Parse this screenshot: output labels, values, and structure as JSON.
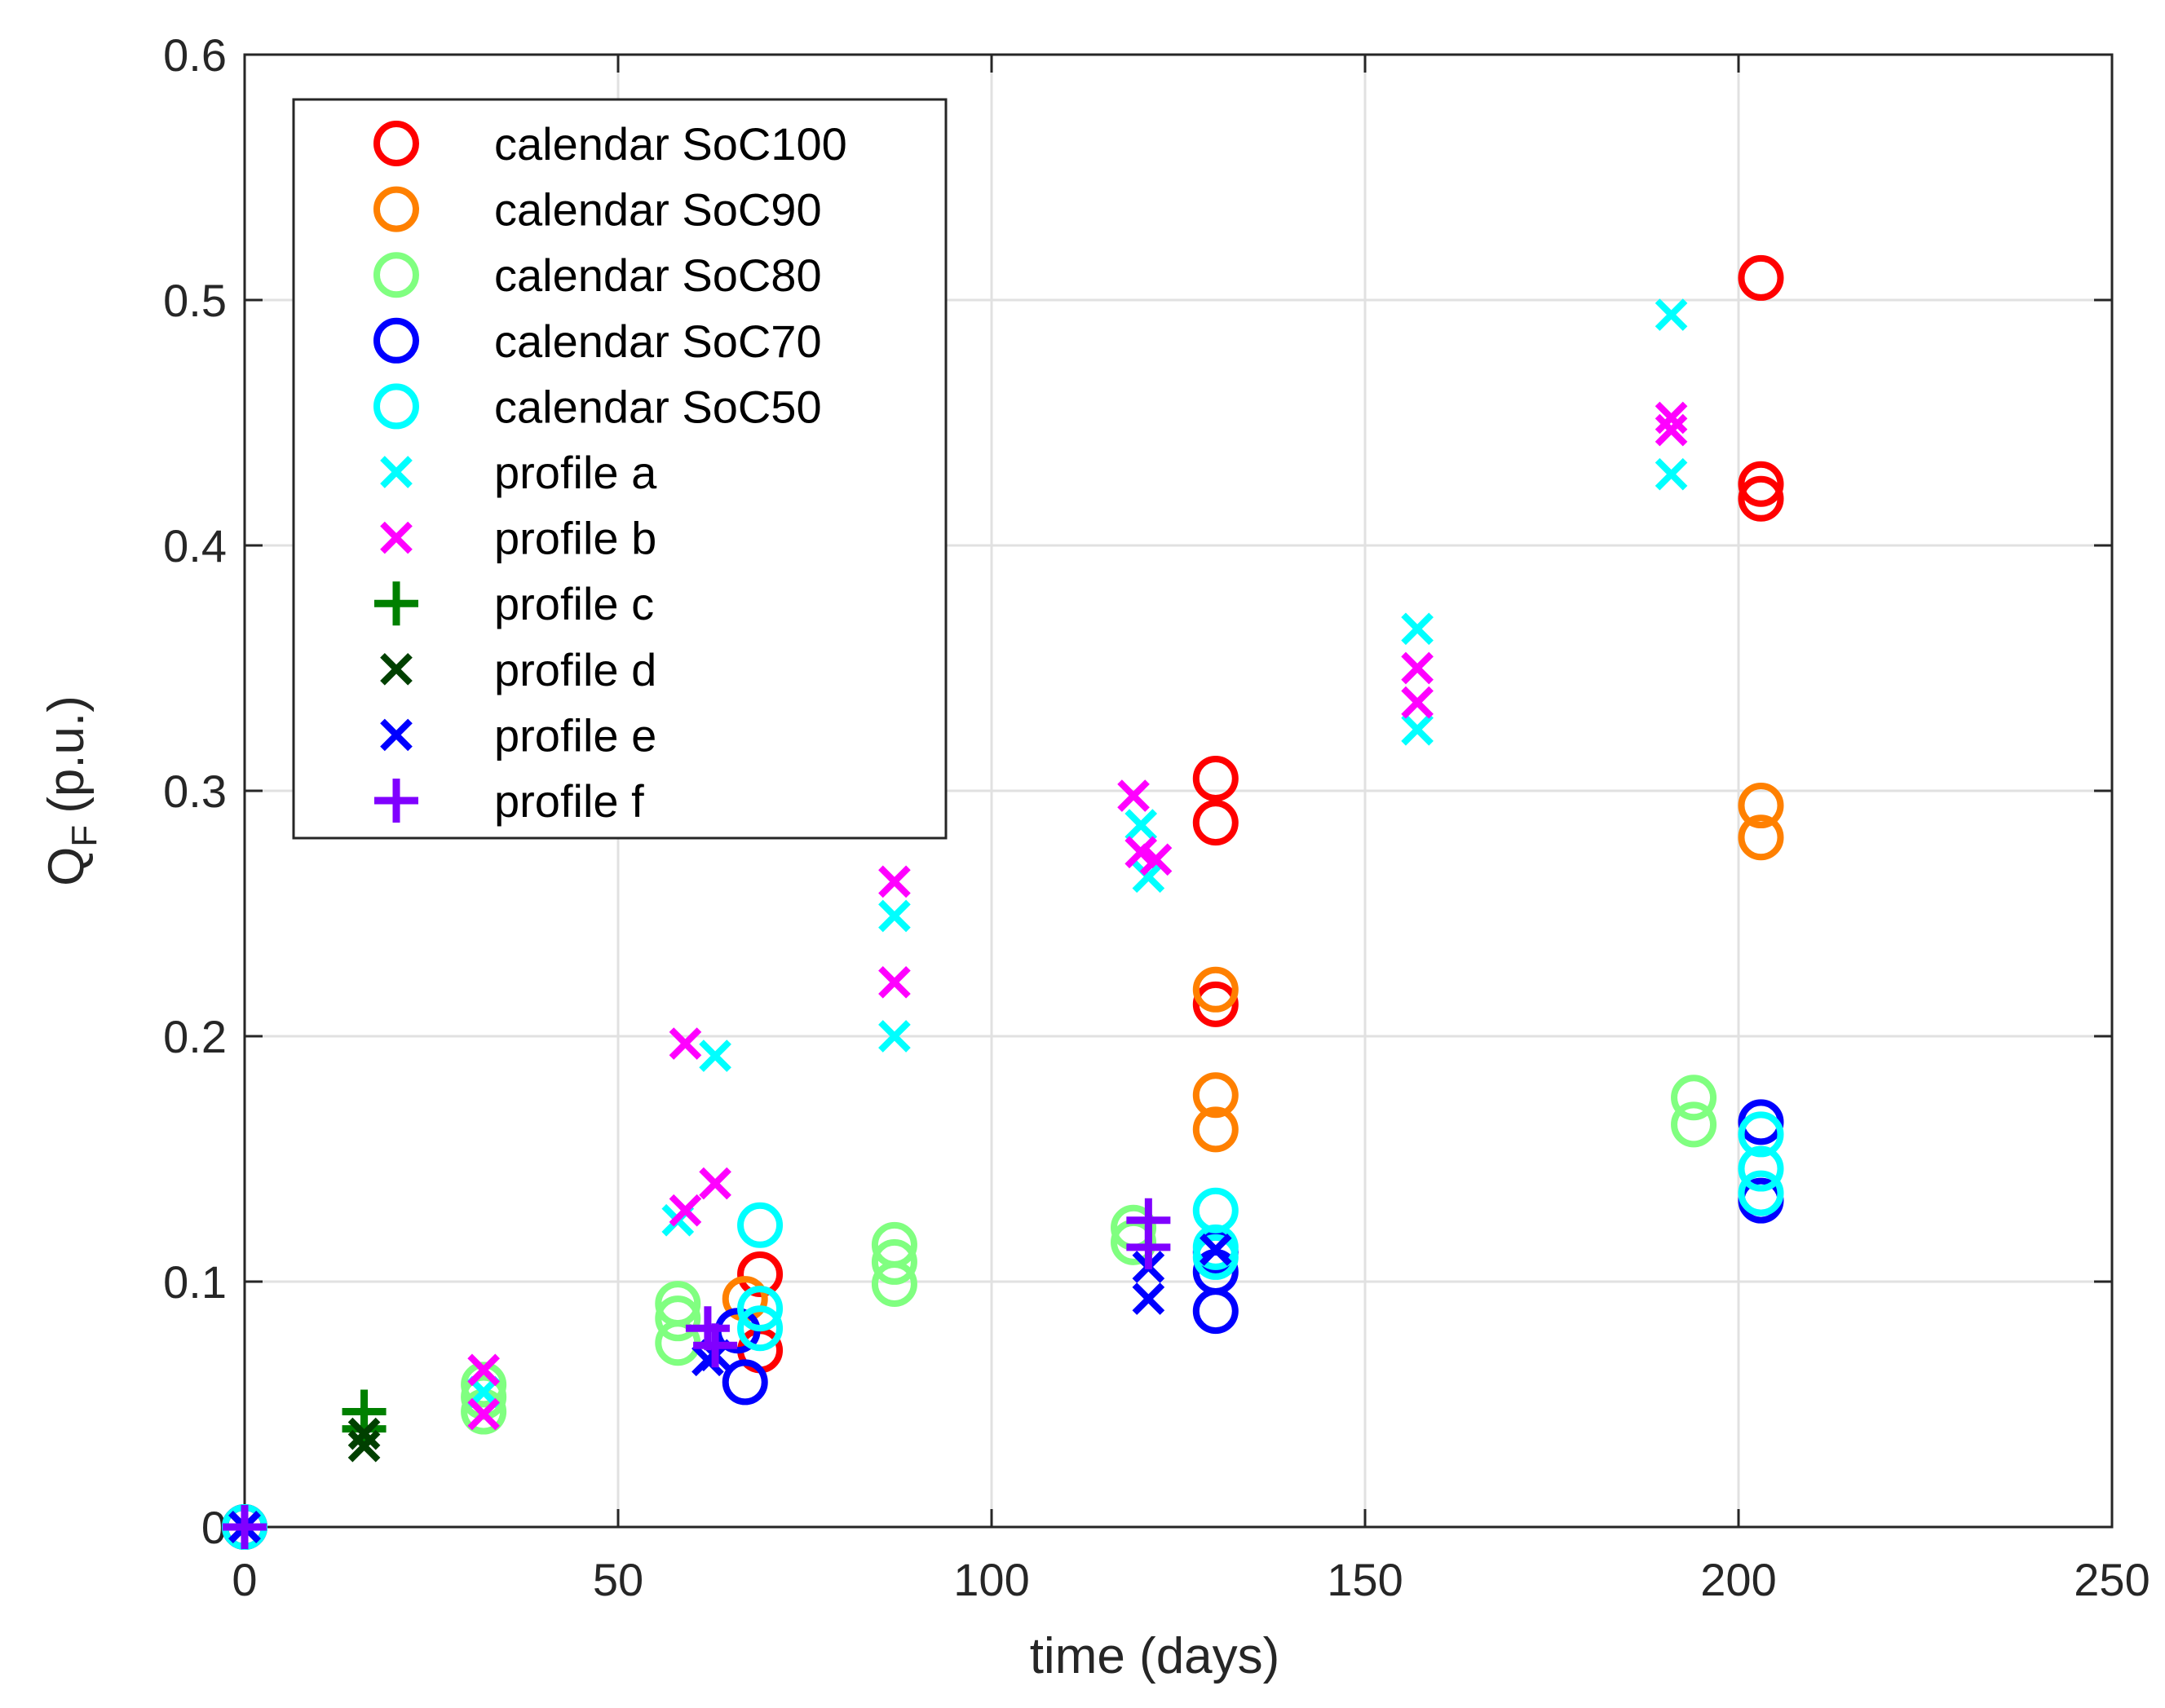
{
  "chart_data": {
    "type": "scatter",
    "xlabel": "time (days)",
    "ylabel_main": "Q",
    "ylabel_sub": "F",
    "ylabel_unit": "(p.u.)",
    "xlim": [
      0,
      250
    ],
    "ylim": [
      0,
      0.6
    ],
    "xticks": [
      0,
      50,
      100,
      150,
      200,
      250
    ],
    "xtick_labels": [
      "0",
      "50",
      "100",
      "150",
      "200",
      "250"
    ],
    "yticks": [
      0,
      0.1,
      0.2,
      0.3,
      0.4,
      0.5,
      0.6
    ],
    "ytick_labels": [
      "0",
      "0.1",
      "0.2",
      "0.3",
      "0.4",
      "0.5",
      "0.6"
    ],
    "grid": true,
    "legend_position": "top-left",
    "series": [
      {
        "name": "calendar SoC100",
        "marker": "circle",
        "color": "#ff0000",
        "points": [
          [
            0,
            0
          ],
          [
            69,
            0.103
          ],
          [
            69,
            0.072
          ],
          [
            130,
            0.305
          ],
          [
            130,
            0.287
          ],
          [
            130,
            0.213
          ],
          [
            203,
            0.509
          ],
          [
            203,
            0.425
          ],
          [
            203,
            0.419
          ]
        ]
      },
      {
        "name": "calendar SoC90",
        "marker": "circle",
        "color": "#ff8000",
        "points": [
          [
            0,
            0
          ],
          [
            67,
            0.093
          ],
          [
            130,
            0.219
          ],
          [
            130,
            0.176
          ],
          [
            130,
            0.162
          ],
          [
            203,
            0.294
          ],
          [
            203,
            0.281
          ]
        ]
      },
      {
        "name": "calendar SoC80",
        "marker": "circle",
        "color": "#80ff80",
        "points": [
          [
            0,
            0
          ],
          [
            32,
            0.058
          ],
          [
            32,
            0.053
          ],
          [
            32,
            0.047
          ],
          [
            58,
            0.091
          ],
          [
            58,
            0.085
          ],
          [
            58,
            0.075
          ],
          [
            87,
            0.115
          ],
          [
            87,
            0.108
          ],
          [
            87,
            0.099
          ],
          [
            119,
            0.122
          ],
          [
            119,
            0.116
          ],
          [
            194,
            0.175
          ],
          [
            194,
            0.164
          ]
        ]
      },
      {
        "name": "calendar SoC70",
        "marker": "circle",
        "color": "#0000ff",
        "points": [
          [
            0,
            0
          ],
          [
            66,
            0.08
          ],
          [
            67,
            0.059
          ],
          [
            130,
            0.112
          ],
          [
            130,
            0.104
          ],
          [
            130,
            0.088
          ],
          [
            203,
            0.165
          ],
          [
            203,
            0.133
          ]
        ]
      },
      {
        "name": "calendar SoC50",
        "marker": "circle",
        "color": "#00ffff",
        "points": [
          [
            0,
            0
          ],
          [
            69,
            0.123
          ],
          [
            69,
            0.089
          ],
          [
            69,
            0.081
          ],
          [
            130,
            0.129
          ],
          [
            130,
            0.114
          ],
          [
            130,
            0.11
          ],
          [
            203,
            0.16
          ],
          [
            203,
            0.146
          ],
          [
            203,
            0.136
          ]
        ]
      },
      {
        "name": "profile a",
        "marker": "x",
        "color": "#00ffff",
        "points": [
          [
            0,
            0
          ],
          [
            32,
            0.055
          ],
          [
            58,
            0.125
          ],
          [
            63,
            0.192
          ],
          [
            87,
            0.249
          ],
          [
            87,
            0.2
          ],
          [
            120,
            0.286
          ],
          [
            121,
            0.265
          ],
          [
            157,
            0.366
          ],
          [
            157,
            0.325
          ],
          [
            191,
            0.494
          ],
          [
            191,
            0.429
          ]
        ]
      },
      {
        "name": "profile b",
        "marker": "x",
        "color": "#ff00ff",
        "points": [
          [
            0,
            0
          ],
          [
            32,
            0.064
          ],
          [
            32,
            0.046
          ],
          [
            59,
            0.197
          ],
          [
            59,
            0.129
          ],
          [
            63,
            0.14
          ],
          [
            87,
            0.263
          ],
          [
            87,
            0.222
          ],
          [
            119,
            0.298
          ],
          [
            120,
            0.275
          ],
          [
            122,
            0.272
          ],
          [
            157,
            0.35
          ],
          [
            157,
            0.336
          ],
          [
            191,
            0.452
          ],
          [
            191,
            0.447
          ]
        ]
      },
      {
        "name": "profile c",
        "marker": "plus",
        "color": "#008000",
        "points": [
          [
            0,
            0
          ],
          [
            16,
            0.047
          ],
          [
            16,
            0.04
          ]
        ]
      },
      {
        "name": "profile d",
        "marker": "x",
        "color": "#004000",
        "points": [
          [
            0,
            0
          ],
          [
            16,
            0.038
          ],
          [
            16,
            0.033
          ]
        ]
      },
      {
        "name": "profile e",
        "marker": "x",
        "color": "#0000ff",
        "points": [
          [
            0,
            0
          ],
          [
            62,
            0.068
          ],
          [
            63,
            0.07
          ],
          [
            121,
            0.093
          ],
          [
            121,
            0.106
          ],
          [
            130,
            0.113
          ]
        ]
      },
      {
        "name": "profile f",
        "marker": "plus",
        "color": "#8000ff",
        "points": [
          [
            0,
            0
          ],
          [
            62,
            0.081
          ],
          [
            63,
            0.074
          ],
          [
            121,
            0.125
          ],
          [
            121,
            0.114
          ]
        ]
      }
    ]
  }
}
